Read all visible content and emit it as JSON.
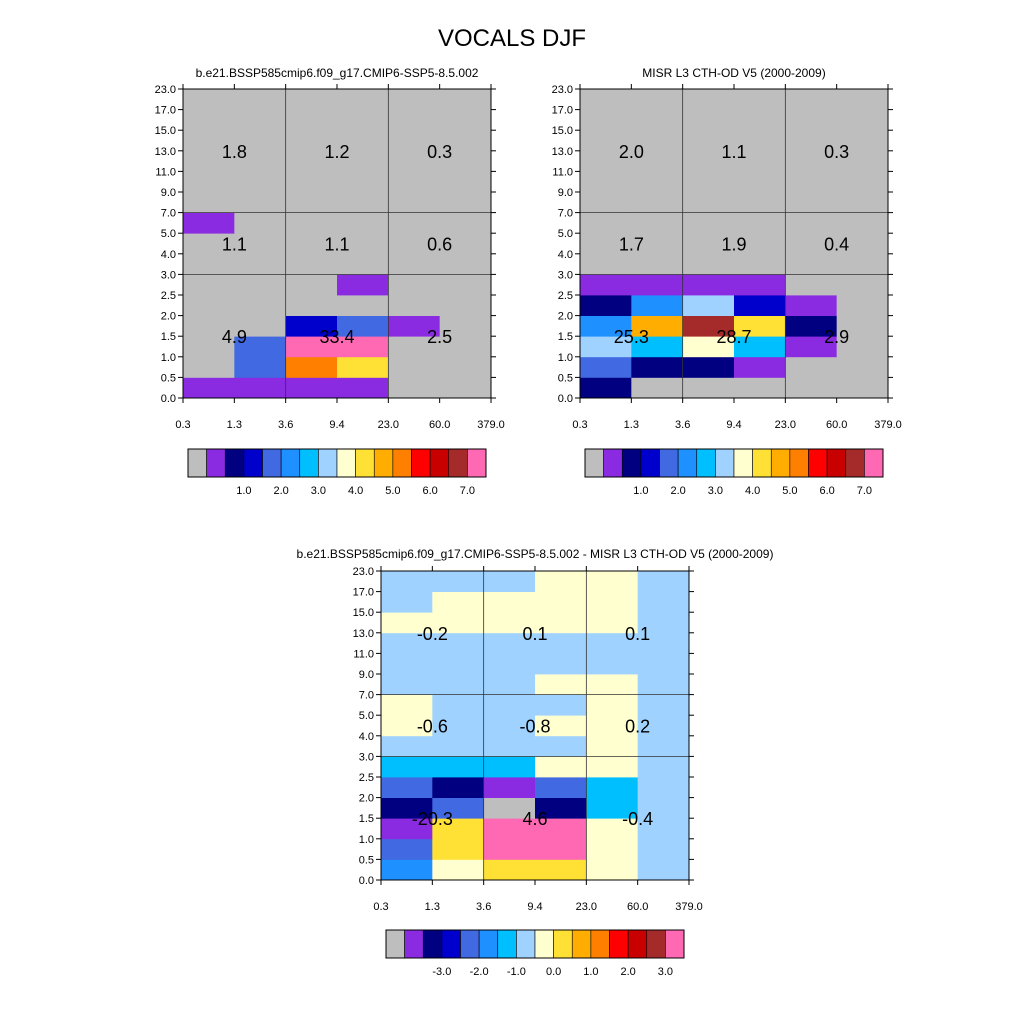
{
  "page": {
    "title": "VOCALS DJF"
  },
  "palettes": {
    "abs": [
      "#bebebe",
      "#8a2be2",
      "#000080",
      "#0000cd",
      "#4169e1",
      "#1e90ff",
      "#00bfff",
      "#a0d2ff",
      "#ffffd0",
      "#ffe135",
      "#ffad00",
      "#ff7f00",
      "#ff0000",
      "#c80000",
      "#a52a2a",
      "#ff69b4"
    ],
    "diff": [
      "#bebebe",
      "#8a2be2",
      "#000080",
      "#0000cd",
      "#4169e1",
      "#1e90ff",
      "#00bfff",
      "#a0d2ff",
      "#ffffd0",
      "#ffe135",
      "#ffad00",
      "#ff7f00",
      "#ff0000",
      "#c80000",
      "#a52a2a",
      "#ff69b4"
    ]
  },
  "chart_data": [
    {
      "type": "heatmap",
      "title": "b.e21.BSSP585cmip6.f09_g17.CMIP6-SSP5-8.5.002",
      "x_ticks": [
        "0.3",
        "1.3",
        "3.6",
        "9.4",
        "23.0",
        "60.0",
        "379.0"
      ],
      "y_ticks": [
        "0.0",
        "0.5",
        "1.0",
        "1.5",
        "2.0",
        "2.5",
        "3.0",
        "4.0",
        "5.0",
        "7.0",
        "9.0",
        "11.0",
        "13.0",
        "15.0",
        "17.0",
        "23.0"
      ],
      "colorbar_labels": [
        "1.0",
        "2.0",
        "3.0",
        "4.0",
        "5.0",
        "6.0",
        "7.0"
      ],
      "palette": "abs",
      "grid": [
        [
          1,
          1,
          1,
          1,
          0,
          0
        ],
        [
          0,
          4,
          11,
          9,
          0,
          0
        ],
        [
          0,
          4,
          15,
          15,
          0,
          0
        ],
        [
          0,
          0,
          3,
          4,
          1,
          0
        ],
        [
          0,
          0,
          0,
          0,
          0,
          0
        ],
        [
          0,
          0,
          0,
          1,
          0,
          0
        ],
        [
          0,
          0,
          0,
          0,
          0,
          0
        ],
        [
          0,
          0,
          0,
          0,
          0,
          0
        ],
        [
          1,
          0,
          0,
          0,
          0,
          0
        ],
        [
          0,
          0,
          0,
          0,
          0,
          0
        ],
        [
          0,
          0,
          0,
          0,
          0,
          0
        ],
        [
          0,
          0,
          0,
          0,
          0,
          0
        ],
        [
          0,
          0,
          0,
          0,
          0,
          0
        ],
        [
          0,
          0,
          0,
          0,
          0,
          0
        ],
        [
          0,
          0,
          0,
          0,
          0,
          0
        ]
      ],
      "sums": [
        {
          "row": 0,
          "col": 0,
          "text": "4.9"
        },
        {
          "row": 0,
          "col": 1,
          "text": "33.4"
        },
        {
          "row": 0,
          "col": 2,
          "text": "2.5"
        },
        {
          "row": 1,
          "col": 0,
          "text": "1.1"
        },
        {
          "row": 1,
          "col": 1,
          "text": "1.1"
        },
        {
          "row": 1,
          "col": 2,
          "text": "0.6"
        },
        {
          "row": 2,
          "col": 0,
          "text": "1.8"
        },
        {
          "row": 2,
          "col": 1,
          "text": "1.2"
        },
        {
          "row": 2,
          "col": 2,
          "text": "0.3"
        }
      ]
    },
    {
      "type": "heatmap",
      "title": "MISR L3 CTH-OD V5 (2000-2009)",
      "x_ticks": [
        "0.3",
        "1.3",
        "3.6",
        "9.4",
        "23.0",
        "60.0",
        "379.0"
      ],
      "y_ticks": [
        "0.0",
        "0.5",
        "1.0",
        "1.5",
        "2.0",
        "2.5",
        "3.0",
        "4.0",
        "5.0",
        "7.0",
        "9.0",
        "11.0",
        "13.0",
        "15.0",
        "17.0",
        "23.0"
      ],
      "colorbar_labels": [
        "1.0",
        "2.0",
        "3.0",
        "4.0",
        "5.0",
        "6.0",
        "7.0"
      ],
      "palette": "abs",
      "grid": [
        [
          2,
          0,
          0,
          0,
          0,
          0
        ],
        [
          4,
          2,
          2,
          1,
          0,
          0
        ],
        [
          7,
          6,
          8,
          6,
          1,
          0
        ],
        [
          5,
          10,
          14,
          9,
          2,
          0
        ],
        [
          2,
          5,
          7,
          3,
          1,
          0
        ],
        [
          1,
          1,
          1,
          1,
          0,
          0
        ],
        [
          0,
          0,
          0,
          0,
          0,
          0
        ],
        [
          0,
          0,
          0,
          0,
          0,
          0
        ],
        [
          0,
          0,
          0,
          0,
          0,
          0
        ],
        [
          0,
          0,
          0,
          0,
          0,
          0
        ],
        [
          0,
          0,
          0,
          0,
          0,
          0
        ],
        [
          0,
          0,
          0,
          0,
          0,
          0
        ],
        [
          0,
          0,
          0,
          0,
          0,
          0
        ],
        [
          0,
          0,
          0,
          0,
          0,
          0
        ],
        [
          0,
          0,
          0,
          0,
          0,
          0
        ]
      ],
      "sums": [
        {
          "row": 0,
          "col": 0,
          "text": "25.3"
        },
        {
          "row": 0,
          "col": 1,
          "text": "28.7"
        },
        {
          "row": 0,
          "col": 2,
          "text": "2.9"
        },
        {
          "row": 1,
          "col": 0,
          "text": "1.7"
        },
        {
          "row": 1,
          "col": 1,
          "text": "1.9"
        },
        {
          "row": 1,
          "col": 2,
          "text": "0.4"
        },
        {
          "row": 2,
          "col": 0,
          "text": "2.0"
        },
        {
          "row": 2,
          "col": 1,
          "text": "1.1"
        },
        {
          "row": 2,
          "col": 2,
          "text": "0.3"
        }
      ]
    },
    {
      "type": "heatmap",
      "title": "b.e21.BSSP585cmip6.f09_g17.CMIP6-SSP5-8.5.002 - MISR L3 CTH-OD V5 (2000-2009)",
      "x_ticks": [
        "0.3",
        "1.3",
        "3.6",
        "9.4",
        "23.0",
        "60.0",
        "379.0"
      ],
      "y_ticks": [
        "0.0",
        "0.5",
        "1.0",
        "1.5",
        "2.0",
        "2.5",
        "3.0",
        "4.0",
        "5.0",
        "7.0",
        "9.0",
        "11.0",
        "13.0",
        "15.0",
        "17.0",
        "23.0"
      ],
      "colorbar_labels": [
        "-3.0",
        "-2.0",
        "-1.0",
        "0.0",
        "1.0",
        "2.0",
        "3.0"
      ],
      "palette": "diff",
      "grid": [
        [
          5,
          8,
          9,
          9,
          8,
          7
        ],
        [
          4,
          9,
          15,
          15,
          8,
          7
        ],
        [
          1,
          9,
          15,
          15,
          8,
          7
        ],
        [
          2,
          4,
          0,
          2,
          6,
          7
        ],
        [
          4,
          2,
          1,
          4,
          6,
          7
        ],
        [
          6,
          6,
          6,
          8,
          8,
          7
        ],
        [
          7,
          7,
          7,
          7,
          8,
          7
        ],
        [
          8,
          7,
          7,
          8,
          8,
          7
        ],
        [
          8,
          7,
          7,
          7,
          8,
          7
        ],
        [
          7,
          7,
          7,
          8,
          8,
          7
        ],
        [
          7,
          7,
          7,
          7,
          7,
          7
        ],
        [
          7,
          7,
          7,
          7,
          7,
          7
        ],
        [
          8,
          8,
          8,
          8,
          8,
          7
        ],
        [
          7,
          8,
          8,
          8,
          8,
          7
        ],
        [
          7,
          7,
          7,
          8,
          8,
          7
        ]
      ],
      "sums": [
        {
          "row": 0,
          "col": 0,
          "text": "-20.3"
        },
        {
          "row": 0,
          "col": 1,
          "text": "4.6"
        },
        {
          "row": 0,
          "col": 2,
          "text": "-0.4"
        },
        {
          "row": 1,
          "col": 0,
          "text": "-0.6"
        },
        {
          "row": 1,
          "col": 1,
          "text": "-0.8"
        },
        {
          "row": 1,
          "col": 2,
          "text": "0.2"
        },
        {
          "row": 2,
          "col": 0,
          "text": "-0.2"
        },
        {
          "row": 2,
          "col": 1,
          "text": "0.1"
        },
        {
          "row": 2,
          "col": 2,
          "text": "0.1"
        }
      ]
    }
  ]
}
